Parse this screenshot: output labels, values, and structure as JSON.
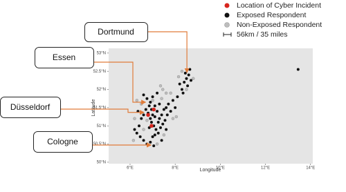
{
  "chart_data": {
    "type": "scatter",
    "x_label": "Longitude",
    "y_label": "Latitude",
    "xlim": [
      5.05,
      14.1
    ],
    "ylim": [
      49.96,
      53.13
    ],
    "xticks": [
      {
        "value": 6,
        "label": "6°E"
      },
      {
        "value": 8,
        "label": "8°E"
      },
      {
        "value": 10,
        "label": "10°E"
      },
      {
        "value": 12,
        "label": "12°E"
      },
      {
        "value": 14,
        "label": "14°E"
      }
    ],
    "yticks": [
      {
        "value": 50,
        "label": "50°N"
      },
      {
        "value": 50.5,
        "label": "50.5°N"
      },
      {
        "value": 51,
        "label": "51°N"
      },
      {
        "value": 51.5,
        "label": "51.5°N"
      },
      {
        "value": 52,
        "label": "52°N"
      },
      {
        "value": 52.5,
        "label": "52.5°N"
      },
      {
        "value": 53,
        "label": "53°N"
      }
    ],
    "background": "#e5e5e5",
    "scale_label": "56km / 35 miles",
    "series": [
      {
        "name": "Location of Cyber Incident",
        "color": "#d7261e",
        "x": [
          6.8,
          6.95,
          7.05
        ],
        "y": [
          51.3,
          51.0,
          51.45
        ]
      },
      {
        "name": "Exposed Respondent",
        "color": "#111111",
        "x": [
          6.9,
          7.0,
          7.1,
          6.8,
          7.2,
          6.95,
          7.05,
          6.85,
          7.15,
          7.3,
          7.4,
          7.5,
          7.6,
          6.7,
          6.6,
          6.5,
          6.4,
          6.3,
          6.45,
          6.6,
          6.9,
          7.0,
          7.1,
          7.25,
          7.35,
          7.45,
          7.55,
          7.65,
          7.8,
          7.7,
          7.3,
          7.1,
          6.9,
          6.75,
          7.0,
          7.2,
          6.6,
          8.3,
          8.4,
          8.5,
          8.6,
          8.55,
          8.7,
          8.45,
          8.35,
          8.2,
          8.65,
          7.9,
          8.0,
          6.2,
          6.35,
          7.4,
          6.75,
          7.05,
          13.45,
          6.95,
          7.25,
          6.85,
          7.6,
          8.1
        ],
        "y": [
          51.2,
          51.3,
          51.25,
          51.35,
          51.4,
          51.1,
          51.0,
          50.95,
          50.9,
          51.2,
          51.3,
          51.45,
          51.5,
          51.45,
          51.3,
          51.2,
          51.0,
          50.8,
          50.7,
          50.6,
          50.55,
          50.7,
          50.75,
          50.8,
          50.95,
          51.05,
          51.15,
          51.3,
          51.4,
          51.6,
          51.6,
          51.55,
          51.65,
          51.75,
          51.8,
          51.9,
          51.85,
          52.0,
          52.2,
          52.3,
          52.4,
          52.1,
          52.25,
          52.45,
          51.9,
          52.15,
          52.55,
          51.7,
          51.5,
          50.9,
          51.4,
          50.6,
          50.5,
          50.45,
          52.55,
          51.45,
          51.1,
          51.55,
          50.9,
          51.8
        ]
      },
      {
        "name": "Non-Exposed Respondent",
        "color": "#bdbdbd",
        "x": [
          7.0,
          7.4,
          7.6,
          6.5,
          6.2,
          7.9,
          8.5,
          8.8,
          8.3,
          6.6,
          7.2,
          7.8,
          7.45,
          6.3,
          8.15,
          6.75,
          7.5,
          6.15,
          8.05,
          7.35
        ],
        "y": [
          51.7,
          51.75,
          51.9,
          51.6,
          51.2,
          51.2,
          52.0,
          52.3,
          52.5,
          50.9,
          50.5,
          51.9,
          52.0,
          51.7,
          52.35,
          51.15,
          50.75,
          50.6,
          51.25,
          52.1
        ]
      }
    ],
    "annotations": [
      {
        "text": "Dortmund",
        "x": 8.52,
        "y": 52.47
      },
      {
        "text": "Essen",
        "x": 6.68,
        "y": 51.65
      },
      {
        "text": "Düsseldorf",
        "x": 6.61,
        "y": 51.37
      },
      {
        "text": "Cologne",
        "x": 6.92,
        "y": 50.66
      }
    ]
  }
}
